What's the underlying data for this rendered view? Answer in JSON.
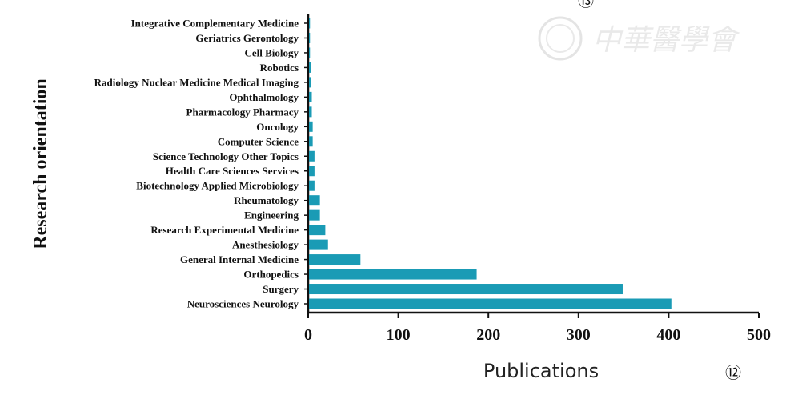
{
  "chart_data": {
    "type": "bar",
    "orientation": "horizontal",
    "categories": [
      "Neurosciences Neurology",
      "Surgery",
      "Orthopedics",
      "General Internal Medicine",
      "Anesthesiology",
      "Research Experimental Medicine",
      "Engineering",
      "Rheumatology",
      "Biotechnology Applied Microbiology",
      "Health Care Sciences Services",
      "Science Technology Other Topics",
      "Computer Science",
      "Oncology",
      "Pharmacology Pharmacy",
      "Ophthalmology",
      "Radiology Nuclear Medicine Medical Imaging",
      "Robotics",
      "Cell Biology",
      "Geriatrics Gerontology",
      "Integrative Complementary Medicine"
    ],
    "values": [
      403,
      349,
      187,
      58,
      22,
      19,
      13,
      13,
      7,
      7,
      7,
      5,
      5,
      4,
      4,
      3,
      3,
      2,
      2,
      2
    ],
    "xlabel": "Publications",
    "ylabel": "Research orientation",
    "xlim": [
      0,
      500
    ],
    "xticks": [
      "0",
      "100",
      "200",
      "300",
      "400",
      "500"
    ],
    "grid": false,
    "bar_color": "#1a9bb5"
  },
  "panel_marker": "⑫",
  "panel_marker_top": "⑬",
  "watermark_text": "中華醫學會"
}
